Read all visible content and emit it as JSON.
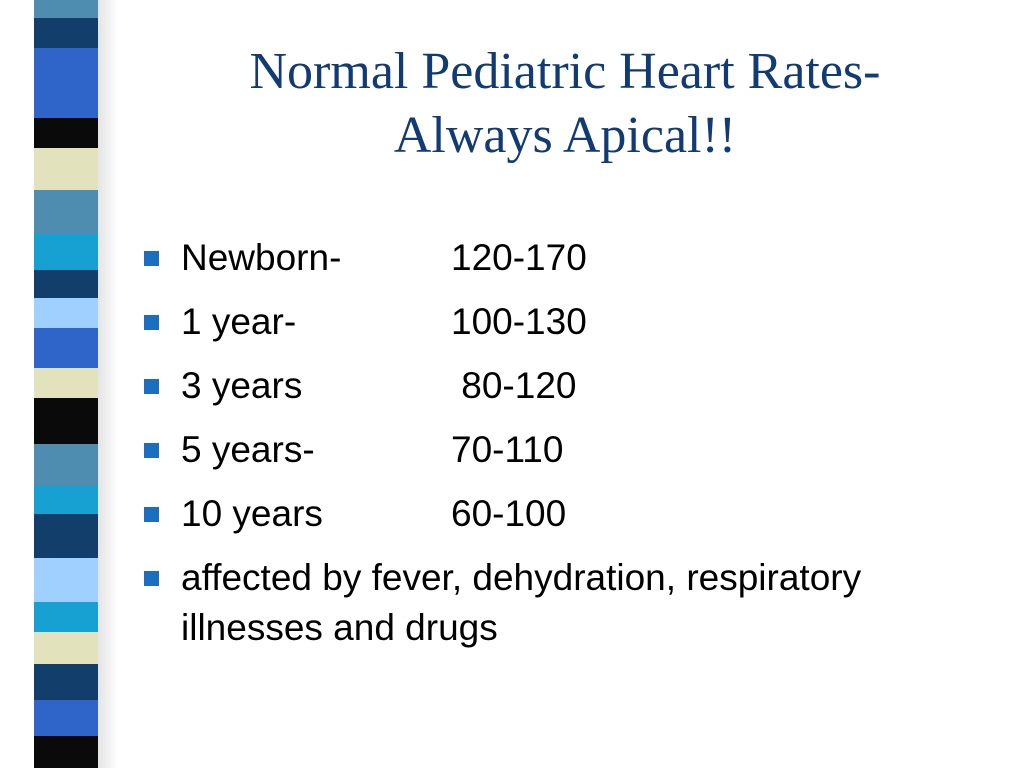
{
  "slide": {
    "title_line1": "Normal Pediatric Heart Rates-",
    "title_line2": "Always Apical!!",
    "rows": [
      {
        "label": "Newborn-",
        "value": "120-170"
      },
      {
        "label": "1 year-",
        "value": "100-130"
      },
      {
        "label": "3 years",
        "value": " 80-120"
      },
      {
        "label": "5 years-",
        "value": "70-110"
      },
      {
        "label": "10 years",
        "value": "60-100"
      }
    ],
    "note": "affected by fever, dehydration, respiratory illnesses and drugs"
  },
  "colors": {
    "title": "#123a73",
    "bullet": "#1b6fc0",
    "stripe_palette": [
      "#4f8db0",
      "#123e6c",
      "#2f64c8",
      "#0a0a0a",
      "#e2e2bd",
      "#17a0d2",
      "#9fd0ff"
    ]
  }
}
